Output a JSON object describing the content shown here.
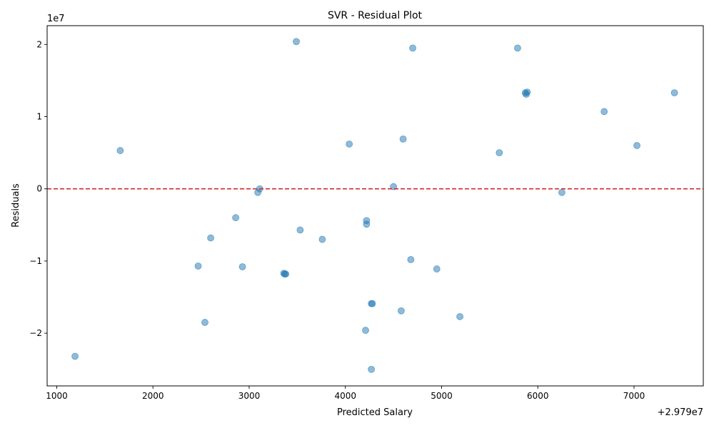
{
  "chart_data": {
    "type": "scatter",
    "title": "SVR - Residual Plot",
    "xlabel": "Predicted Salary",
    "ylabel": "Residuals",
    "x_offset_label": "+2.979e7",
    "y_scale_label": "1e7",
    "xlim": [
      900,
      7720
    ],
    "ylim": [
      -2.73,
      2.26
    ],
    "x_ticks": [
      {
        "value": 1000,
        "label": "1000"
      },
      {
        "value": 2000,
        "label": "2000"
      },
      {
        "value": 3000,
        "label": "3000"
      },
      {
        "value": 4000,
        "label": "4000"
      },
      {
        "value": 5000,
        "label": "5000"
      },
      {
        "value": 6000,
        "label": "6000"
      },
      {
        "value": 7000,
        "label": "7000"
      }
    ],
    "y_ticks": [
      {
        "value": 2,
        "label": "2"
      },
      {
        "value": 1,
        "label": "1"
      },
      {
        "value": 0,
        "label": "0"
      },
      {
        "value": -1,
        "label": "−1"
      },
      {
        "value": -2,
        "label": "−2"
      }
    ],
    "reference_line": {
      "y": 0,
      "color": "#d62728",
      "style": "dashed"
    },
    "point_color": "#1f77b4",
    "point_alpha": 0.5,
    "points": [
      {
        "x": 3490,
        "y": 2.04
      },
      {
        "x": 4700,
        "y": 1.95
      },
      {
        "x": 5790,
        "y": 1.95
      },
      {
        "x": 5870,
        "y": 1.33
      },
      {
        "x": 5890,
        "y": 1.34
      },
      {
        "x": 5880,
        "y": 1.31
      },
      {
        "x": 7420,
        "y": 1.33
      },
      {
        "x": 6690,
        "y": 1.07
      },
      {
        "x": 4600,
        "y": 0.69
      },
      {
        "x": 4040,
        "y": 0.62
      },
      {
        "x": 1660,
        "y": 0.53
      },
      {
        "x": 5600,
        "y": 0.5
      },
      {
        "x": 7030,
        "y": 0.6
      },
      {
        "x": 4500,
        "y": 0.03
      },
      {
        "x": 3110,
        "y": 0.0
      },
      {
        "x": 3090,
        "y": -0.05
      },
      {
        "x": 6250,
        "y": -0.05
      },
      {
        "x": 2860,
        "y": -0.4
      },
      {
        "x": 4220,
        "y": -0.44
      },
      {
        "x": 4220,
        "y": -0.49
      },
      {
        "x": 3530,
        "y": -0.57
      },
      {
        "x": 2600,
        "y": -0.68
      },
      {
        "x": 3760,
        "y": -0.7
      },
      {
        "x": 4680,
        "y": -0.98
      },
      {
        "x": 2470,
        "y": -1.07
      },
      {
        "x": 2930,
        "y": -1.08
      },
      {
        "x": 4950,
        "y": -1.11
      },
      {
        "x": 3360,
        "y": -1.17
      },
      {
        "x": 3370,
        "y": -1.18
      },
      {
        "x": 3380,
        "y": -1.18
      },
      {
        "x": 4270,
        "y": -1.59
      },
      {
        "x": 4280,
        "y": -1.59
      },
      {
        "x": 4580,
        "y": -1.69
      },
      {
        "x": 5190,
        "y": -1.77
      },
      {
        "x": 2540,
        "y": -1.85
      },
      {
        "x": 4210,
        "y": -1.96
      },
      {
        "x": 1190,
        "y": -2.32
      },
      {
        "x": 4270,
        "y": -2.5
      }
    ]
  }
}
